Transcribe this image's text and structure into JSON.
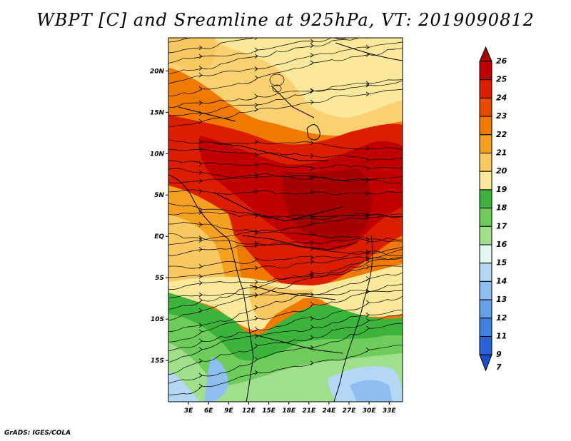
{
  "title": "WBPT [C] and Sreamline at 925hPa, VT: 2019090812",
  "footer": "GrADS: IGES/COLA",
  "map": {
    "lat_labels": [
      "20N",
      "15N",
      "10N",
      "5N",
      "EQ",
      "5S",
      "10S",
      "15S"
    ],
    "lon_labels": [
      "3E",
      "6E",
      "9E",
      "12E",
      "15E",
      "18E",
      "21E",
      "24E",
      "27E",
      "30E",
      "33E"
    ],
    "lat_range": [
      -20,
      24
    ],
    "lon_range": [
      0,
      35
    ]
  },
  "colorbar": {
    "labels": [
      "26",
      "25",
      "24",
      "23",
      "22",
      "21",
      "20",
      "19",
      "18",
      "17",
      "16",
      "15",
      "14",
      "13",
      "12",
      "11",
      "9",
      "7"
    ],
    "colors": [
      "#a50000",
      "#c00000",
      "#dc1e00",
      "#e84a00",
      "#f07a00",
      "#f5a020",
      "#f9c860",
      "#fce89a",
      "#3cb43c",
      "#6ecc5a",
      "#a0e08c",
      "#e2f7ee",
      "#b4d7f5",
      "#8cbef0",
      "#64a0e8",
      "#4082e0",
      "#2864d8",
      "#1e4bc8"
    ]
  }
}
